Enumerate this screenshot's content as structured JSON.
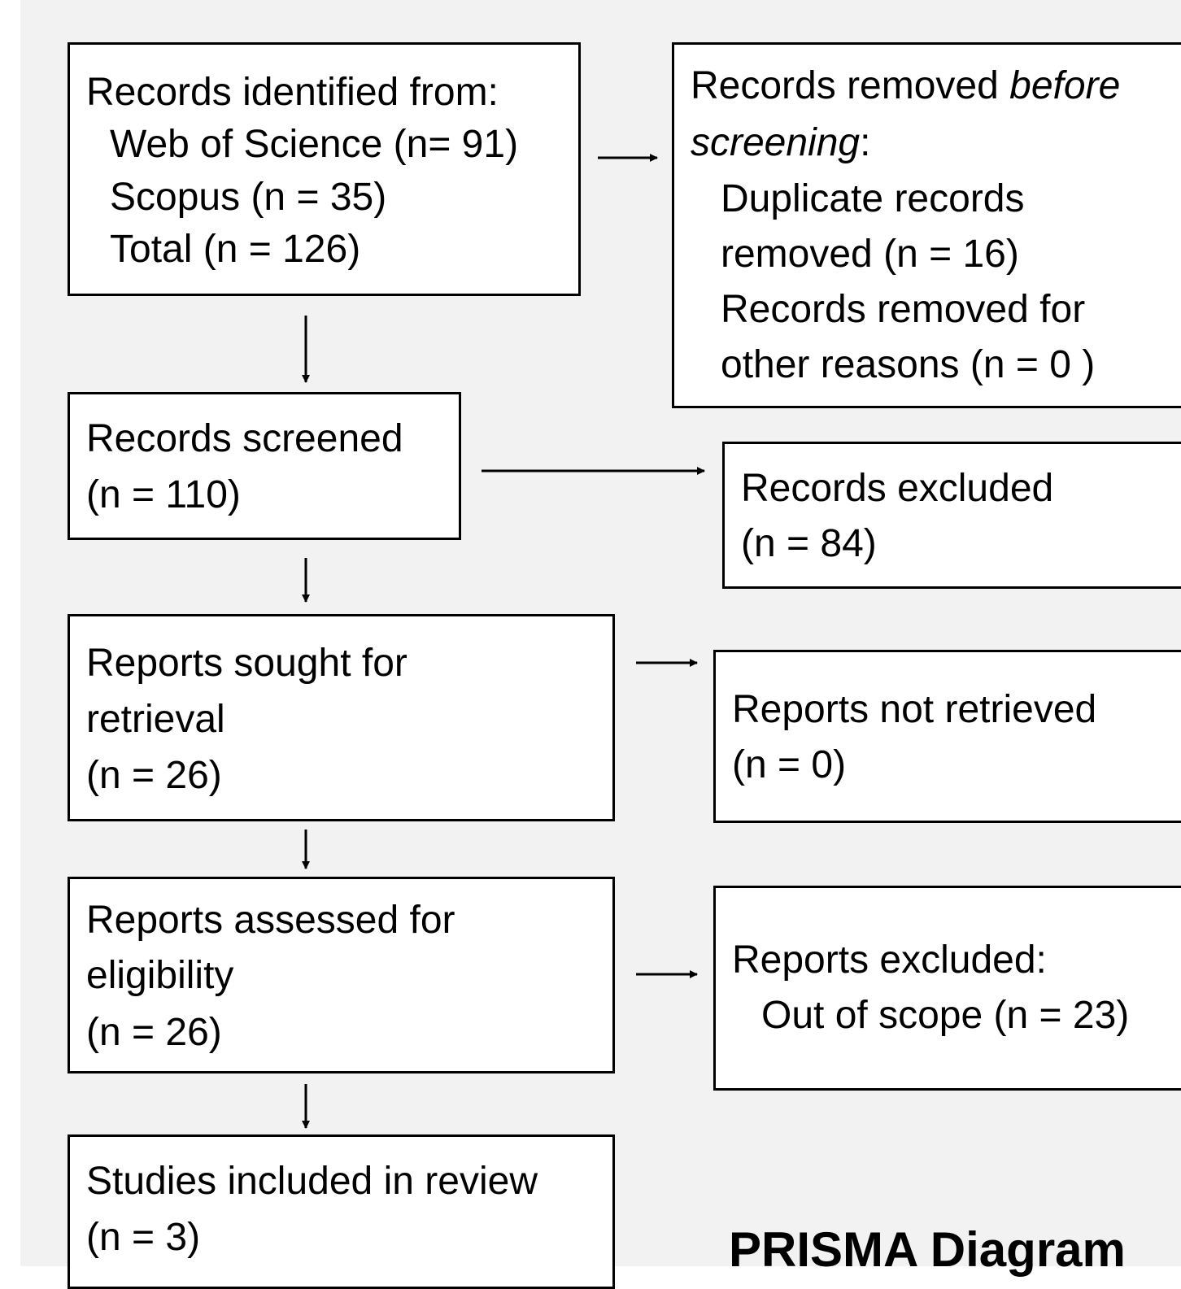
{
  "title": "PRISMA Diagram",
  "identification": {
    "heading": "Records identified from:",
    "lines": [
      "Web of Science (n= 91)",
      "Scopus (n = 35)",
      "Total (n = 126)"
    ]
  },
  "removed_before": {
    "heading_a": "Records removed ",
    "heading_em1": "before",
    "heading_em2": "screening",
    "heading_colon": ":",
    "lines": [
      "Duplicate records",
      "removed  (n = 16)",
      "Records removed for",
      "other reasons (n = 0 )"
    ]
  },
  "screened": {
    "lines": [
      "Records screened",
      "(n = 110)"
    ]
  },
  "excluded": {
    "lines": [
      "Records excluded",
      "(n = 84)"
    ]
  },
  "sought": {
    "lines": [
      "Reports sought for",
      "retrieval",
      "(n = 26)"
    ]
  },
  "not_retrieved": {
    "lines": [
      "Reports not retrieved",
      "(n = 0)"
    ]
  },
  "assessed": {
    "lines": [
      "Reports assessed for",
      "eligibility",
      "(n = 26)"
    ]
  },
  "reports_excluded": {
    "heading": "Reports excluded:",
    "lines": [
      "Out of scope (n = 23)"
    ]
  },
  "included": {
    "lines": [
      "Studies included in review",
      "(n = 3)"
    ]
  }
}
